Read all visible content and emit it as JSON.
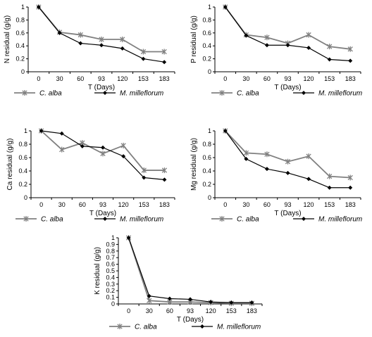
{
  "chart_data": [
    {
      "type": "line",
      "categories": [
        "0",
        "30",
        "60",
        "93",
        "120",
        "153",
        "183"
      ],
      "ylabel": "N residual (g/g)",
      "xlabel": "T (Days)",
      "ylim": [
        0,
        1
      ],
      "yticks": [
        "0",
        "0.2",
        "0.4",
        "0.6",
        "0.8",
        "1"
      ],
      "series": [
        {
          "name": "C. alba",
          "color": "#808080",
          "marker": "star",
          "values": [
            1.0,
            0.61,
            0.57,
            0.5,
            0.5,
            0.31,
            0.31
          ]
        },
        {
          "name": "M. milleflorum",
          "color": "#000000",
          "marker": "diamond",
          "values": [
            1.0,
            0.6,
            0.44,
            0.41,
            0.36,
            0.2,
            0.15
          ]
        }
      ]
    },
    {
      "type": "line",
      "categories": [
        "0",
        "30",
        "60",
        "93",
        "120",
        "153",
        "183"
      ],
      "ylabel": "P residual (g/g)",
      "xlabel": "T (Days)",
      "ylim": [
        0,
        1
      ],
      "yticks": [
        "0",
        "0.2",
        "0.4",
        "0.6",
        "0.8",
        "1"
      ],
      "series": [
        {
          "name": "C. alba",
          "color": "#808080",
          "marker": "star",
          "values": [
            1.0,
            0.57,
            0.53,
            0.44,
            0.57,
            0.39,
            0.35
          ]
        },
        {
          "name": "M. milleflorum",
          "color": "#000000",
          "marker": "diamond",
          "values": [
            1.0,
            0.56,
            0.41,
            0.41,
            0.37,
            0.19,
            0.17
          ]
        }
      ]
    },
    {
      "type": "line",
      "categories": [
        "0",
        "30",
        "60",
        "93",
        "120",
        "153",
        "183"
      ],
      "ylabel": "Ca residual (g/g)",
      "xlabel": "T (Days)",
      "ylim": [
        0,
        1
      ],
      "yticks": [
        "0",
        "0.2",
        "0.4",
        "0.6",
        "0.8",
        "1"
      ],
      "series": [
        {
          "name": "C. alba",
          "color": "#808080",
          "marker": "star",
          "values": [
            1.0,
            0.72,
            0.82,
            0.66,
            0.78,
            0.41,
            0.41
          ]
        },
        {
          "name": "M. milleflorum",
          "color": "#000000",
          "marker": "diamond",
          "values": [
            1.0,
            0.96,
            0.77,
            0.75,
            0.62,
            0.3,
            0.27
          ]
        }
      ]
    },
    {
      "type": "line",
      "categories": [
        "0",
        "30",
        "60",
        "93",
        "120",
        "153",
        "183"
      ],
      "ylabel": "Mg residual (g/g)",
      "xlabel": "T (Days)",
      "ylim": [
        0,
        1
      ],
      "yticks": [
        "0",
        "0.2",
        "0.4",
        "0.6",
        "0.8",
        "1"
      ],
      "series": [
        {
          "name": "C. alba",
          "color": "#808080",
          "marker": "star",
          "values": [
            1.0,
            0.67,
            0.65,
            0.54,
            0.62,
            0.32,
            0.3
          ]
        },
        {
          "name": "M. milleflorum",
          "color": "#000000",
          "marker": "diamond",
          "values": [
            1.0,
            0.58,
            0.43,
            0.37,
            0.28,
            0.15,
            0.15
          ]
        }
      ]
    },
    {
      "type": "line",
      "categories": [
        "0",
        "30",
        "60",
        "93",
        "120",
        "153",
        "183"
      ],
      "ylabel": "K residual (g/g)",
      "xlabel": "T (Days)",
      "ylim": [
        0,
        1
      ],
      "yticks": [
        "0",
        "0.1",
        "0.2",
        "0.3",
        "0.4",
        "0.5",
        "0.6",
        "0.7",
        "0.8",
        "0.9",
        "1"
      ],
      "series": [
        {
          "name": "C. alba",
          "color": "#808080",
          "marker": "star",
          "values": [
            1.0,
            0.05,
            0.03,
            0.03,
            0.02,
            0.01,
            0.01
          ]
        },
        {
          "name": "M. milleflorum",
          "color": "#000000",
          "marker": "diamond",
          "values": [
            1.0,
            0.12,
            0.08,
            0.07,
            0.03,
            0.02,
            0.02
          ]
        }
      ]
    }
  ]
}
